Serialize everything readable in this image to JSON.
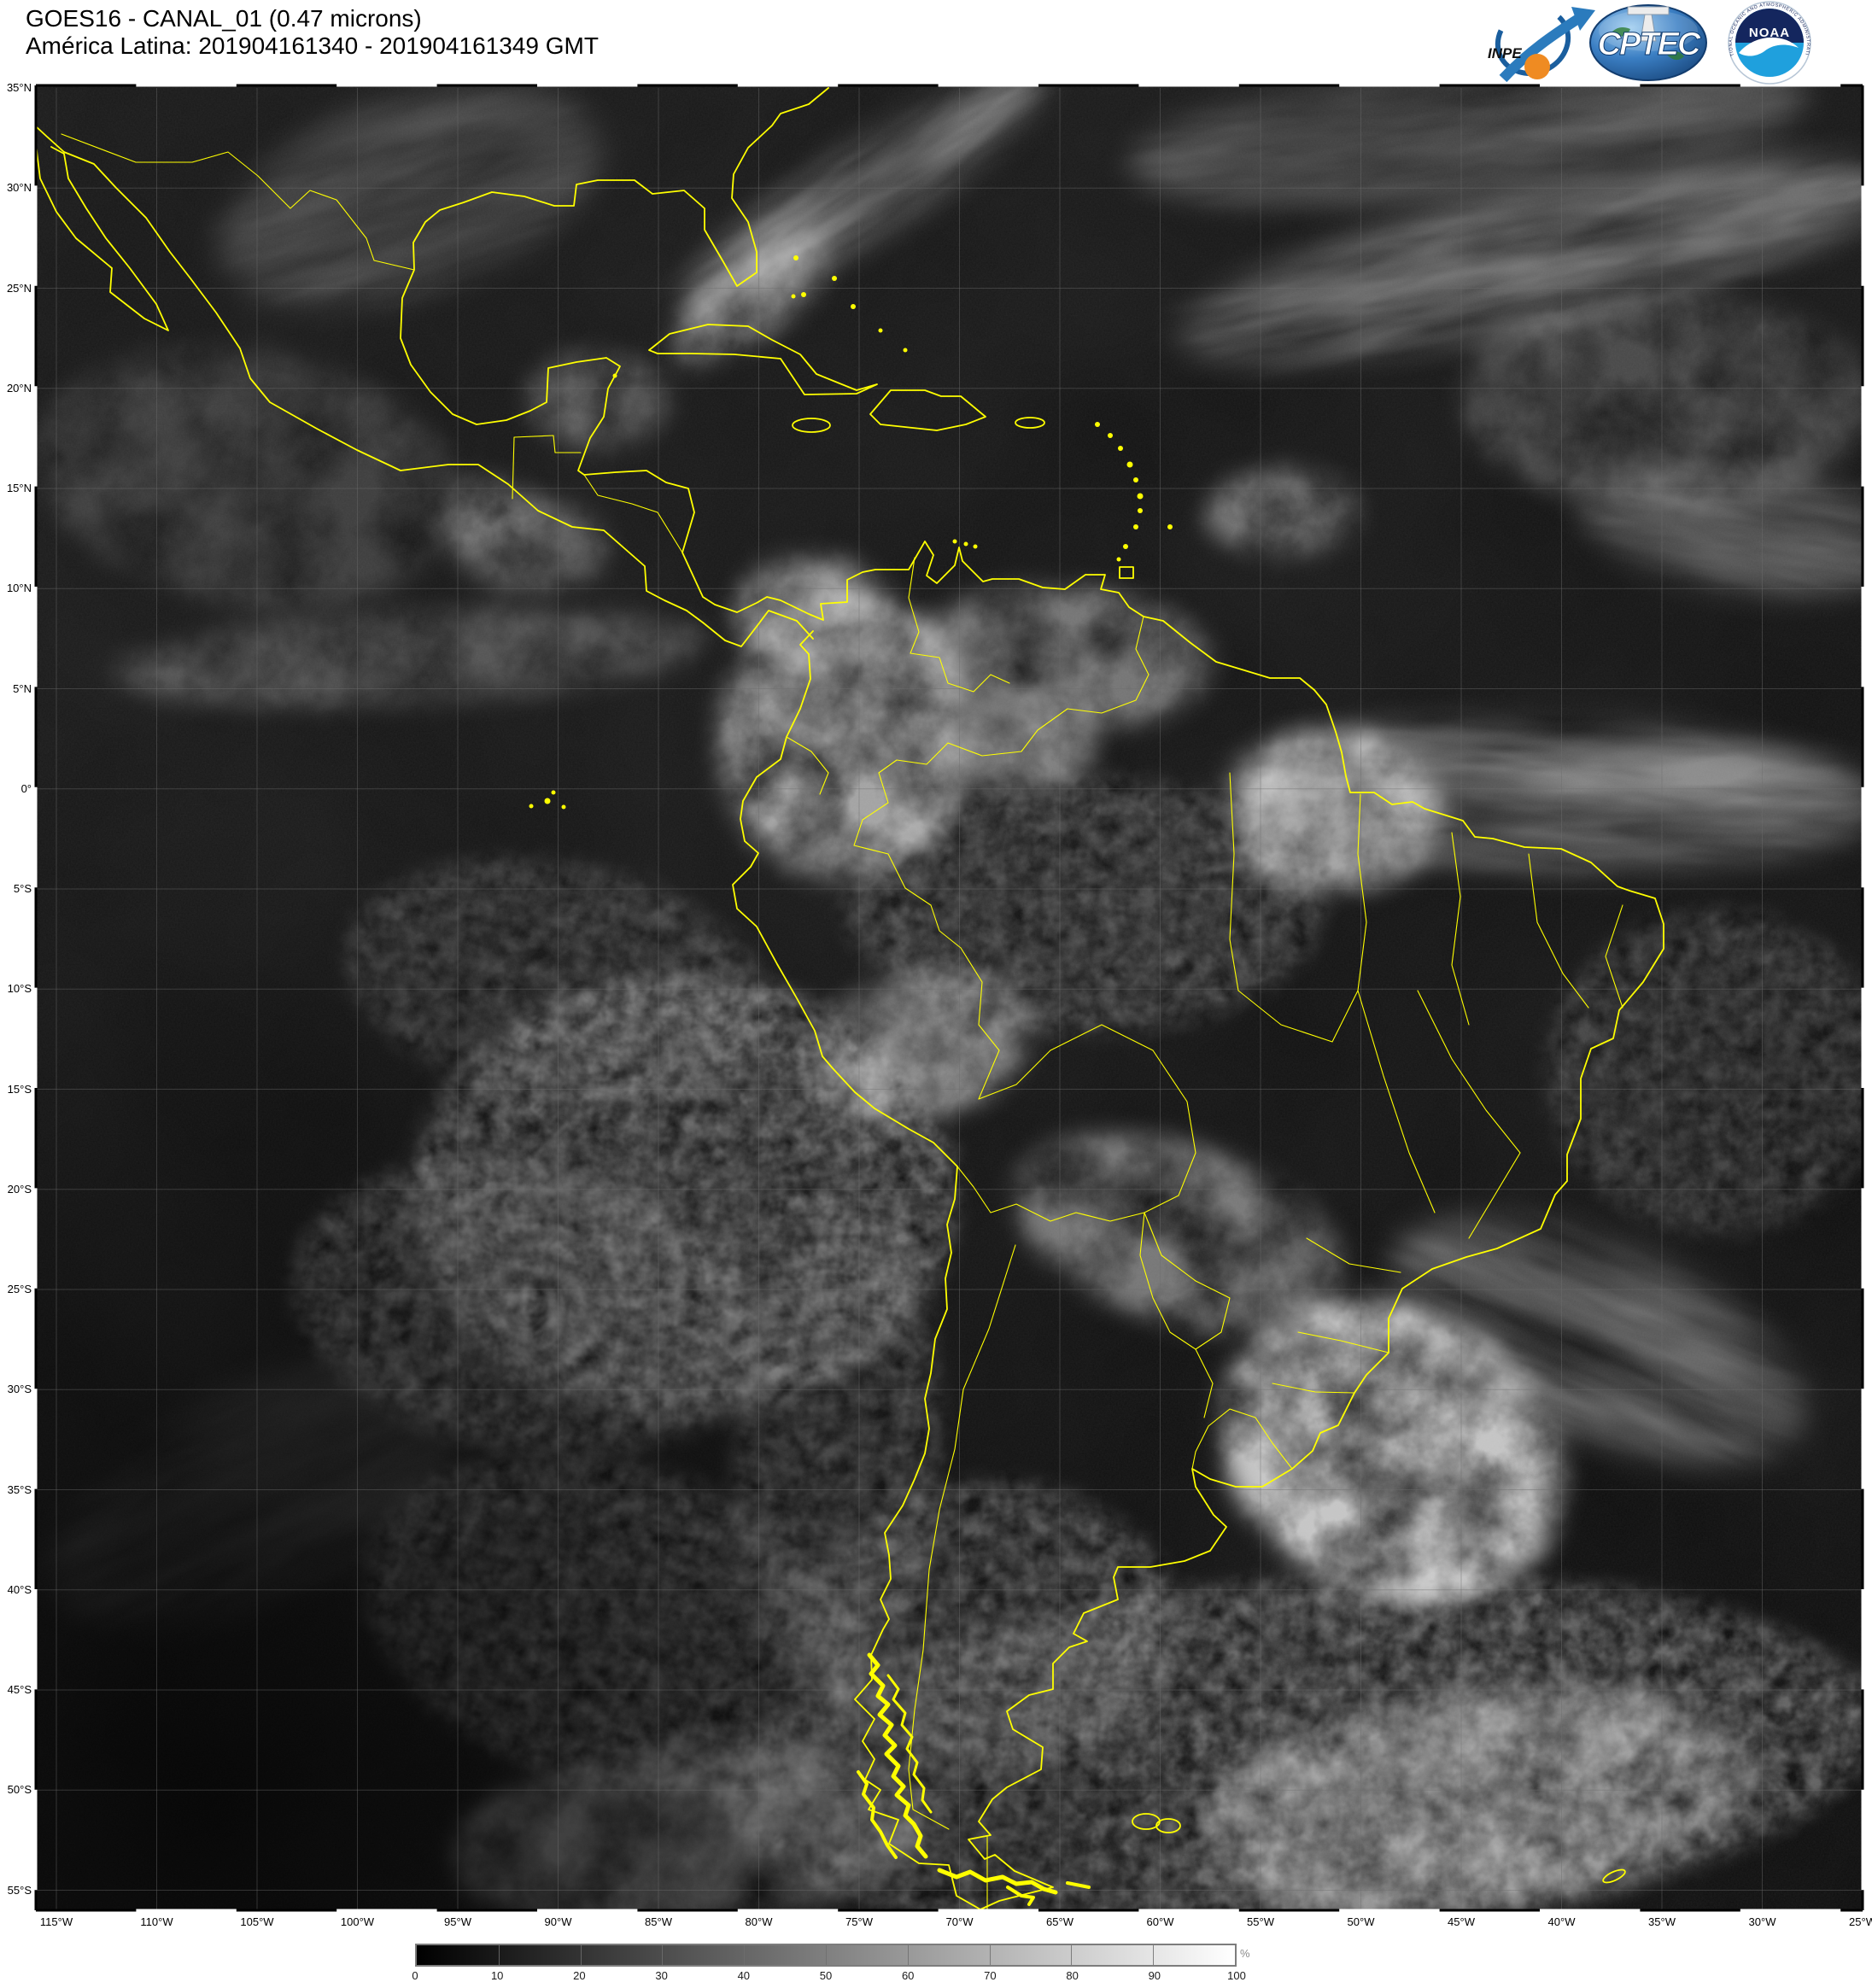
{
  "header": {
    "line1": "GOES16 - CANAL_01 (0.47 microns)",
    "line2": "América Latina: 201904161340 - 201904161349 GMT"
  },
  "logos": {
    "inpe": "INPE",
    "cptec": "CPTEC",
    "noaa": "NOAA",
    "noaa_ring_top": "NATIONAL OCEANIC AND ATMOSPHERIC ADMINISTRATION",
    "noaa_ring_bottom": "U.S. DEPARTMENT OF COMMERCE"
  },
  "map": {
    "satellite": "GOES16",
    "channel": "CANAL_01",
    "wavelength": "0.47 microns",
    "region": "América Latina",
    "time_start": "201904161340",
    "time_end": "201904161349",
    "time_zone": "GMT",
    "coast_color": "#ffff00",
    "grid_color": "#6e6e6e",
    "lat_ticks": [
      "35°N",
      "30°N",
      "25°N",
      "20°N",
      "15°N",
      "10°N",
      "5°N",
      "0°",
      "5°S",
      "10°S",
      "15°S",
      "20°S",
      "25°S",
      "30°S",
      "35°S",
      "40°S",
      "45°S",
      "50°S",
      "55°S"
    ],
    "lon_ticks": [
      "115°W",
      "110°W",
      "105°W",
      "100°W",
      "95°W",
      "90°W",
      "85°W",
      "80°W",
      "75°W",
      "70°W",
      "65°W",
      "60°W",
      "55°W",
      "50°W",
      "45°W",
      "40°W",
      "35°W",
      "30°W",
      "25°W"
    ]
  },
  "colorbar": {
    "ticks": [
      "0",
      "10",
      "20",
      "30",
      "40",
      "50",
      "60",
      "70",
      "80",
      "90",
      "100"
    ],
    "unit": "%",
    "start_color": "#000000",
    "end_color": "#ffffff"
  }
}
